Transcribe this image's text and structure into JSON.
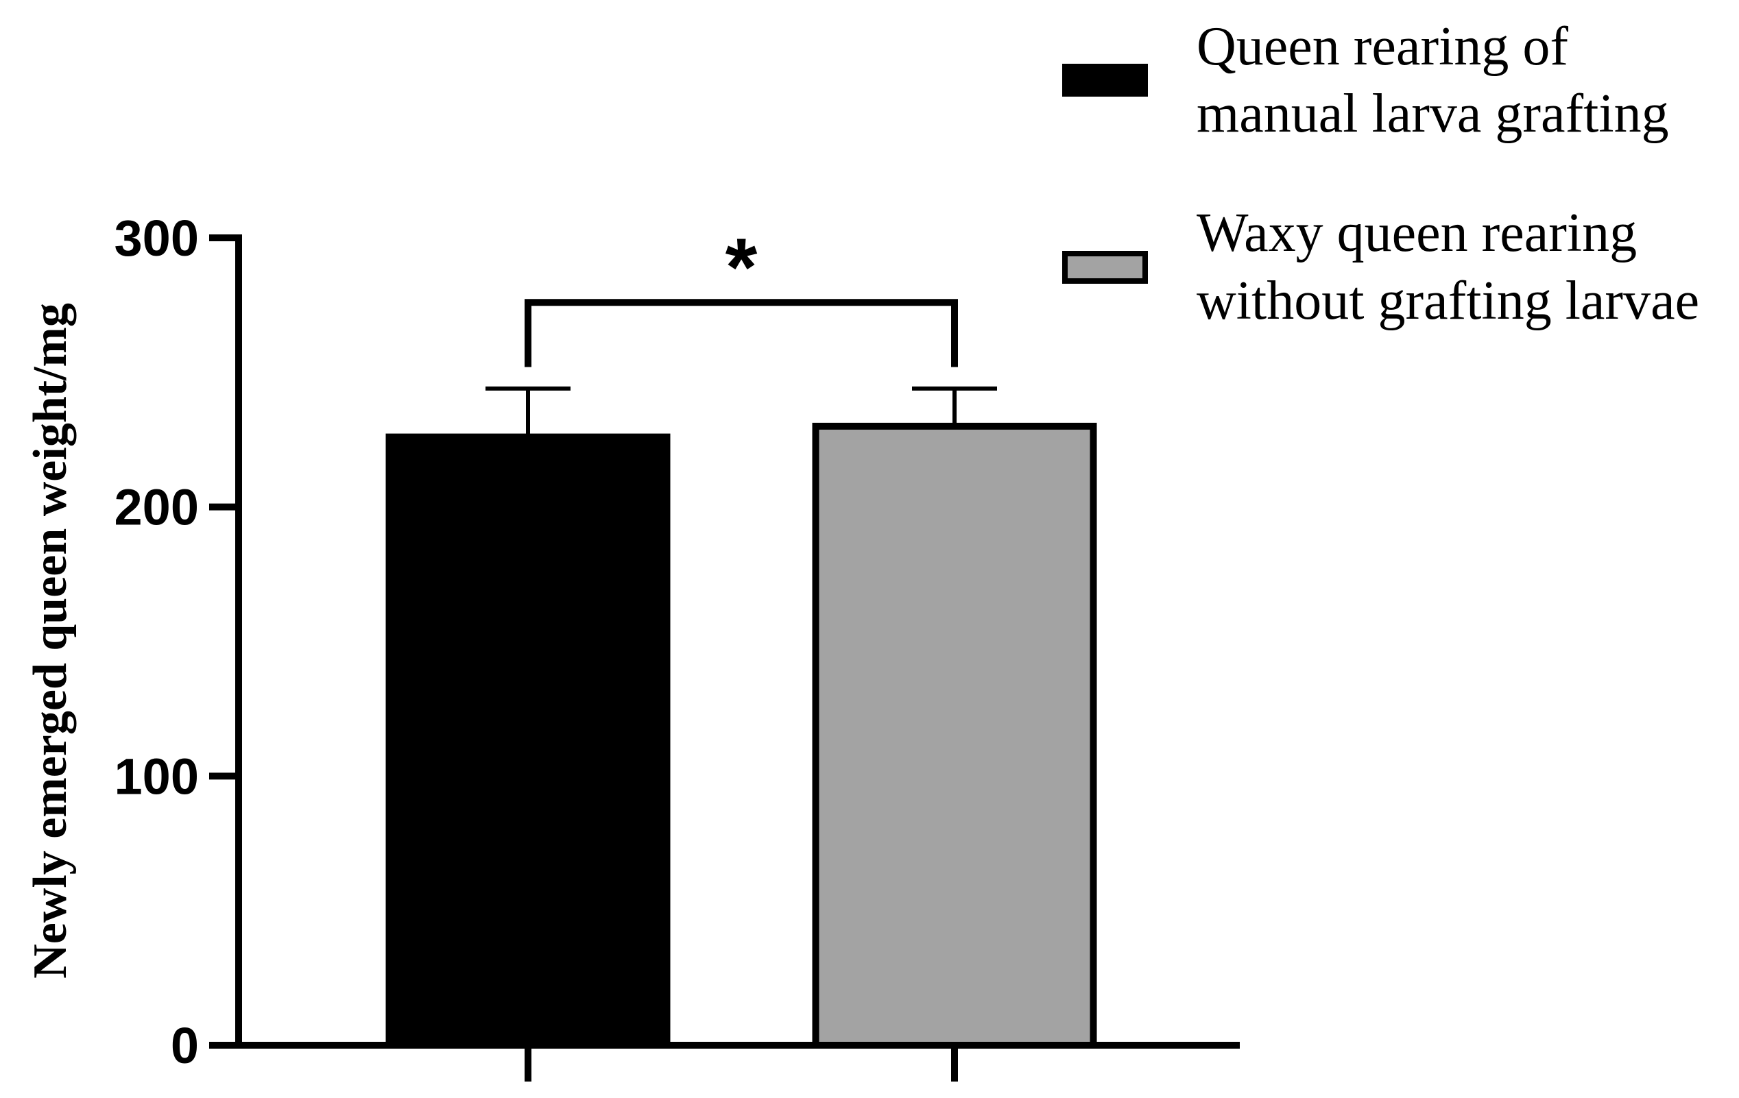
{
  "chart_data": {
    "type": "bar",
    "title": "",
    "xlabel": "",
    "ylabel": "Newly emerged queen weight/mg",
    "ylim": [
      0,
      300
    ],
    "yticks": [
      0,
      100,
      200,
      300
    ],
    "ytick_labels": [
      "0",
      "100",
      "200",
      "300"
    ],
    "grid": false,
    "legend_position": "top-right",
    "categories": [
      "Queen rearing of manual larva grafting",
      "Waxy queen rearing without grafting larvae"
    ],
    "series": [
      {
        "name": "Queen rearing of manual larva grafting",
        "name_lines": [
          "Queen rearing of",
          "manual larva grafting"
        ],
        "value": 226,
        "error": 18,
        "color": "#000000"
      },
      {
        "name": "Waxy queen rearing without grafting larvae",
        "name_lines": [
          "Waxy queen rearing",
          "without grafting larvae"
        ],
        "value": 230,
        "error": 14,
        "color": "#a3a3a3"
      }
    ],
    "annotations": [
      {
        "type": "significance-bracket",
        "between": [
          0,
          1
        ],
        "label": "*",
        "y_value": 276,
        "drop_to": 252
      }
    ]
  }
}
